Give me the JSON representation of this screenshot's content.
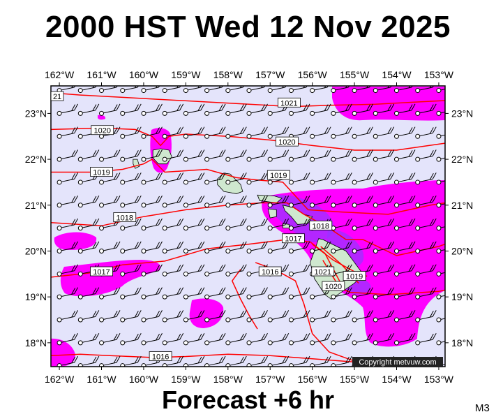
{
  "header": {
    "title": "2000 HST Wed 12 Nov 2025"
  },
  "footer": {
    "forecast_label": "Forecast +6 hr",
    "model_tag": "M3"
  },
  "copyright": "Copyright metvuw.com",
  "map": {
    "lon_range": [
      -162.2,
      -152.85
    ],
    "lat_range": [
      17.48,
      23.6
    ],
    "lon_ticks": [
      {
        "value": -162,
        "label": "162°W"
      },
      {
        "value": -161,
        "label": "161°W"
      },
      {
        "value": -160,
        "label": "160°W"
      },
      {
        "value": -159,
        "label": "159°W"
      },
      {
        "value": -158,
        "label": "158°W"
      },
      {
        "value": -157,
        "label": "157°W"
      },
      {
        "value": -156,
        "label": "156°W"
      },
      {
        "value": -155,
        "label": "155°W"
      },
      {
        "value": -154,
        "label": "154°W"
      },
      {
        "value": -153,
        "label": "153°W"
      }
    ],
    "lat_ticks": [
      {
        "value": 23,
        "label": "23°N"
      },
      {
        "value": 22,
        "label": "22°N"
      },
      {
        "value": 21,
        "label": "21°N"
      },
      {
        "value": 20,
        "label": "20°N"
      },
      {
        "value": 19,
        "label": "19°N"
      },
      {
        "value": 18,
        "label": "18°N"
      }
    ],
    "colors": {
      "ocean": "#e4e4fb",
      "rain_light": "#ff00ff",
      "rain_heavy": "#9a33ff",
      "isobar": "#ff0000",
      "land": "#cfe8cf",
      "wind": "#000000"
    },
    "isobar_labels": [
      {
        "text": "21",
        "lon": -162.05,
        "lat": 23.37
      },
      {
        "text": "1021",
        "lon": -156.55,
        "lat": 23.23
      },
      {
        "text": "1020",
        "lon": -160.98,
        "lat": 22.63
      },
      {
        "text": "1020",
        "lon": -156.6,
        "lat": 22.38
      },
      {
        "text": "1019",
        "lon": -161.0,
        "lat": 21.72
      },
      {
        "text": "1019",
        "lon": -156.8,
        "lat": 21.65
      },
      {
        "text": "1018",
        "lon": -160.45,
        "lat": 20.73
      },
      {
        "text": "1018",
        "lon": -155.8,
        "lat": 20.55
      },
      {
        "text": "1017",
        "lon": -156.45,
        "lat": 20.27
      },
      {
        "text": "1017",
        "lon": -161.0,
        "lat": 19.55
      },
      {
        "text": "1016",
        "lon": -157.0,
        "lat": 19.55
      },
      {
        "text": "1021",
        "lon": -155.75,
        "lat": 19.55
      },
      {
        "text": "1020",
        "lon": -155.5,
        "lat": 19.23
      },
      {
        "text": "1019",
        "lon": -155.0,
        "lat": 19.45
      },
      {
        "text": "1016",
        "lon": -159.6,
        "lat": 17.7
      }
    ]
  }
}
